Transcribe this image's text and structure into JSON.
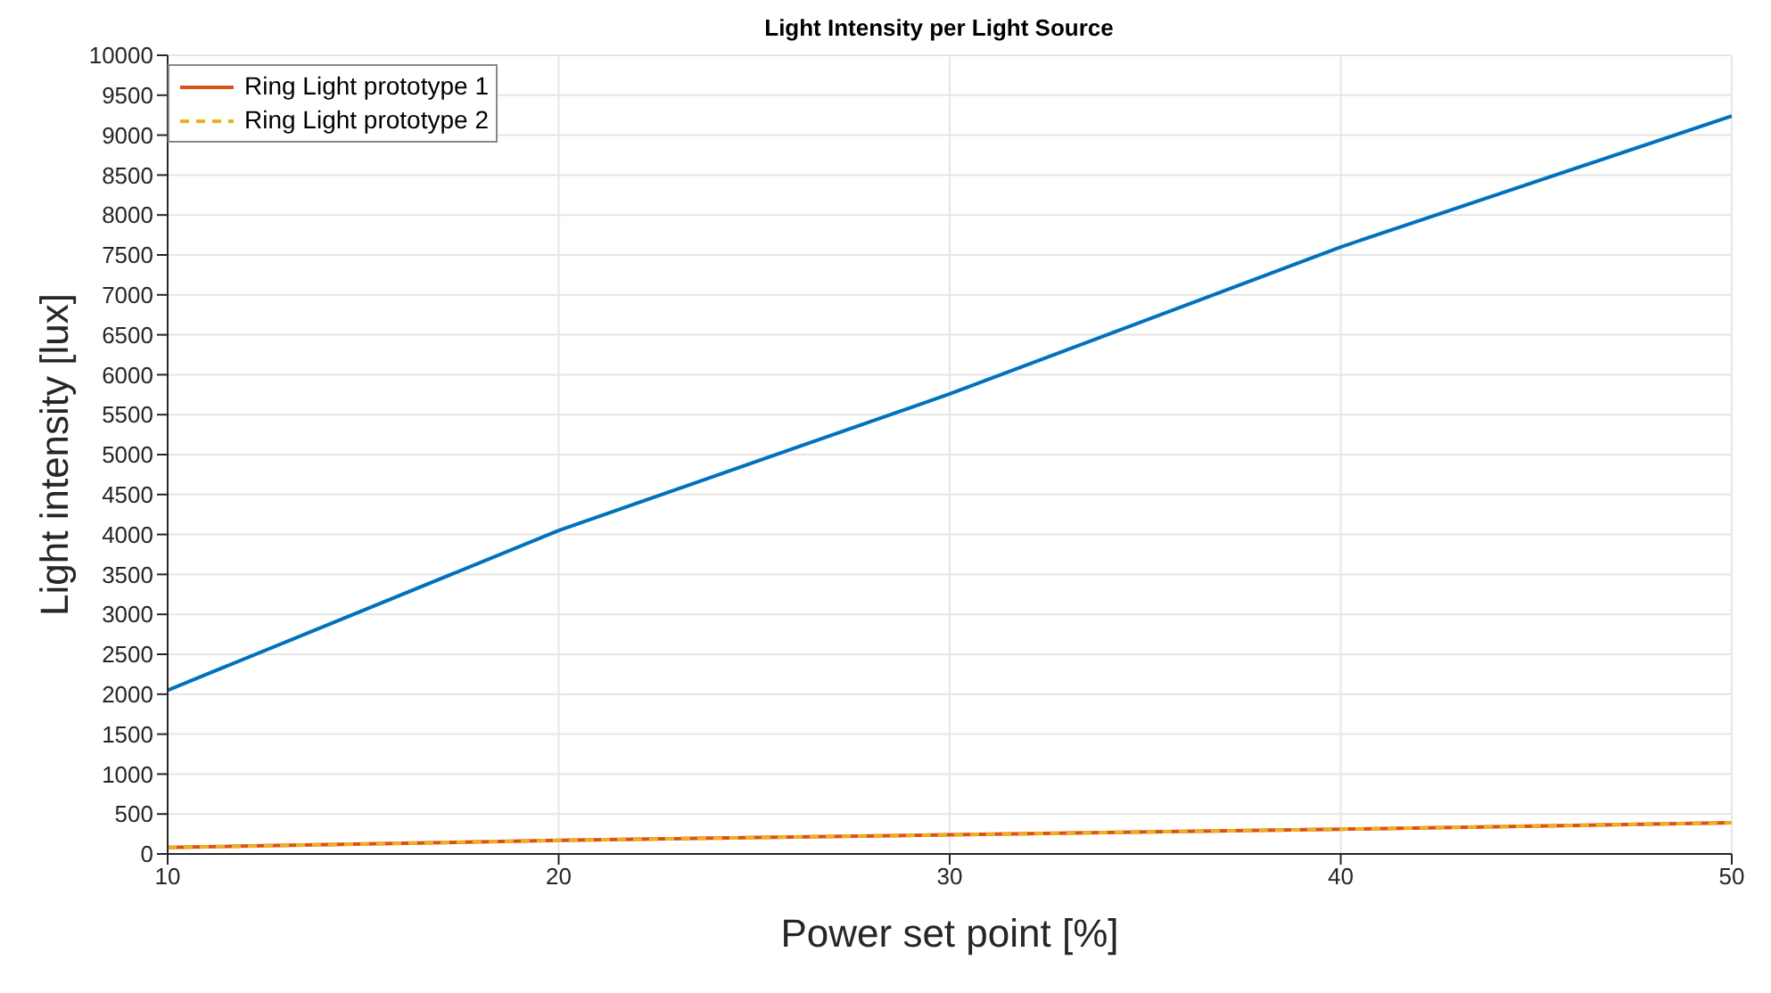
{
  "chart_data": {
    "type": "line",
    "title": "Light Intensity per Light Source",
    "xlabel": "Power set point [%]",
    "ylabel": "Light intensity [lux]",
    "x": [
      10,
      20,
      30,
      40,
      50
    ],
    "series": [
      {
        "color": "#0072bd",
        "values": [
          2050,
          4050,
          5760,
          7600,
          9240
        ]
      },
      {
        "name": "Ring Light prototype 1",
        "color": "#d95319",
        "values": [
          80,
          170,
          240,
          310,
          390
        ]
      },
      {
        "name": "Ring Light prototype 2",
        "color": "#edb120",
        "values": [
          80,
          170,
          240,
          310,
          390
        ],
        "line_style": "dashed"
      }
    ],
    "xlim": [
      10,
      50
    ],
    "xticks": [
      10,
      20,
      30,
      40,
      50
    ],
    "ylim": [
      0,
      10000
    ],
    "yticks": [
      0,
      500,
      1000,
      1500,
      2000,
      2500,
      3000,
      3500,
      4000,
      4500,
      5000,
      5500,
      6000,
      6500,
      7000,
      7500,
      8000,
      8500,
      9000,
      9500,
      10000
    ],
    "grid": true,
    "legend": "top left",
    "marker": "none",
    "line_style": "solid"
  }
}
